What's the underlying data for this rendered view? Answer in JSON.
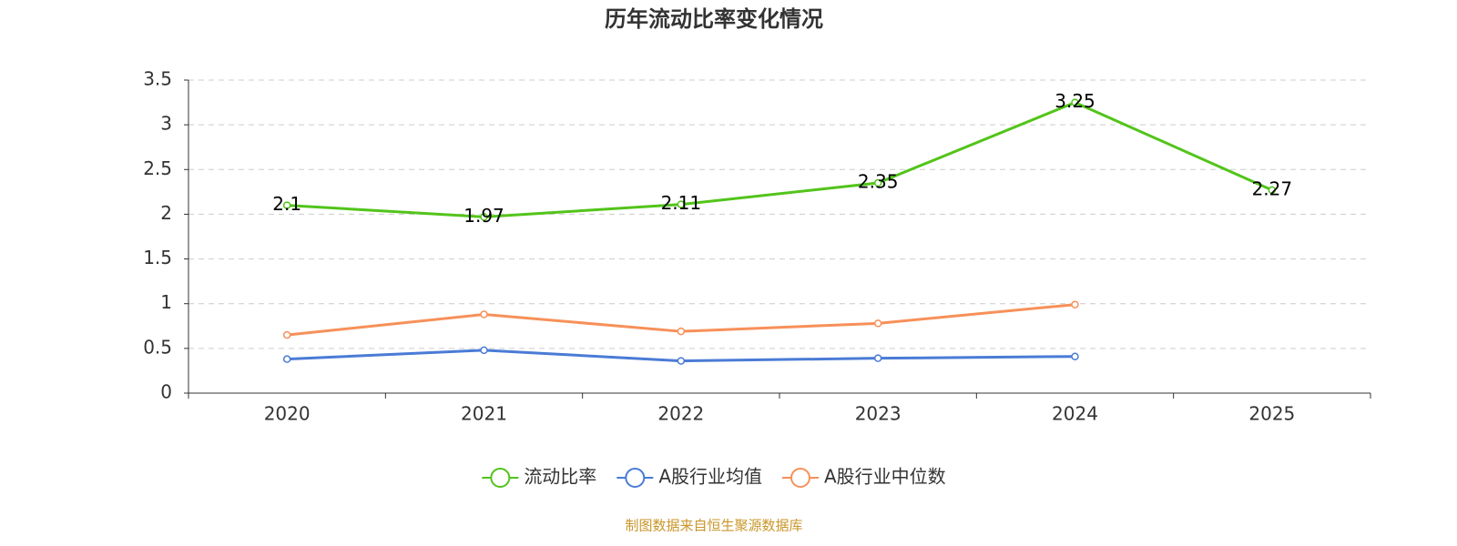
{
  "chart_data": {
    "type": "line",
    "title": "历年流动比率变化情况",
    "categories": [
      "2020",
      "2021",
      "2022",
      "2023",
      "2024",
      "2025"
    ],
    "series": [
      {
        "name": "流动比率",
        "color": "#52c41a",
        "labels": true,
        "values": [
          2.1,
          1.97,
          2.11,
          2.35,
          3.25,
          2.27
        ]
      },
      {
        "name": "A股行业均值",
        "color": "#4a7bd6",
        "values": [
          0.38,
          0.48,
          0.36,
          0.39,
          0.41,
          null
        ]
      },
      {
        "name": "A股行业中位数",
        "color": "#f79059",
        "values": [
          0.65,
          0.88,
          0.69,
          0.78,
          0.99,
          null
        ]
      }
    ],
    "ylim": [
      0,
      3.5
    ],
    "yticks": [
      0,
      0.5,
      1,
      1.5,
      2,
      2.5,
      3,
      3.5
    ],
    "grid": true,
    "legend": "bottom",
    "source": "制图数据来自恒生聚源数据库"
  }
}
